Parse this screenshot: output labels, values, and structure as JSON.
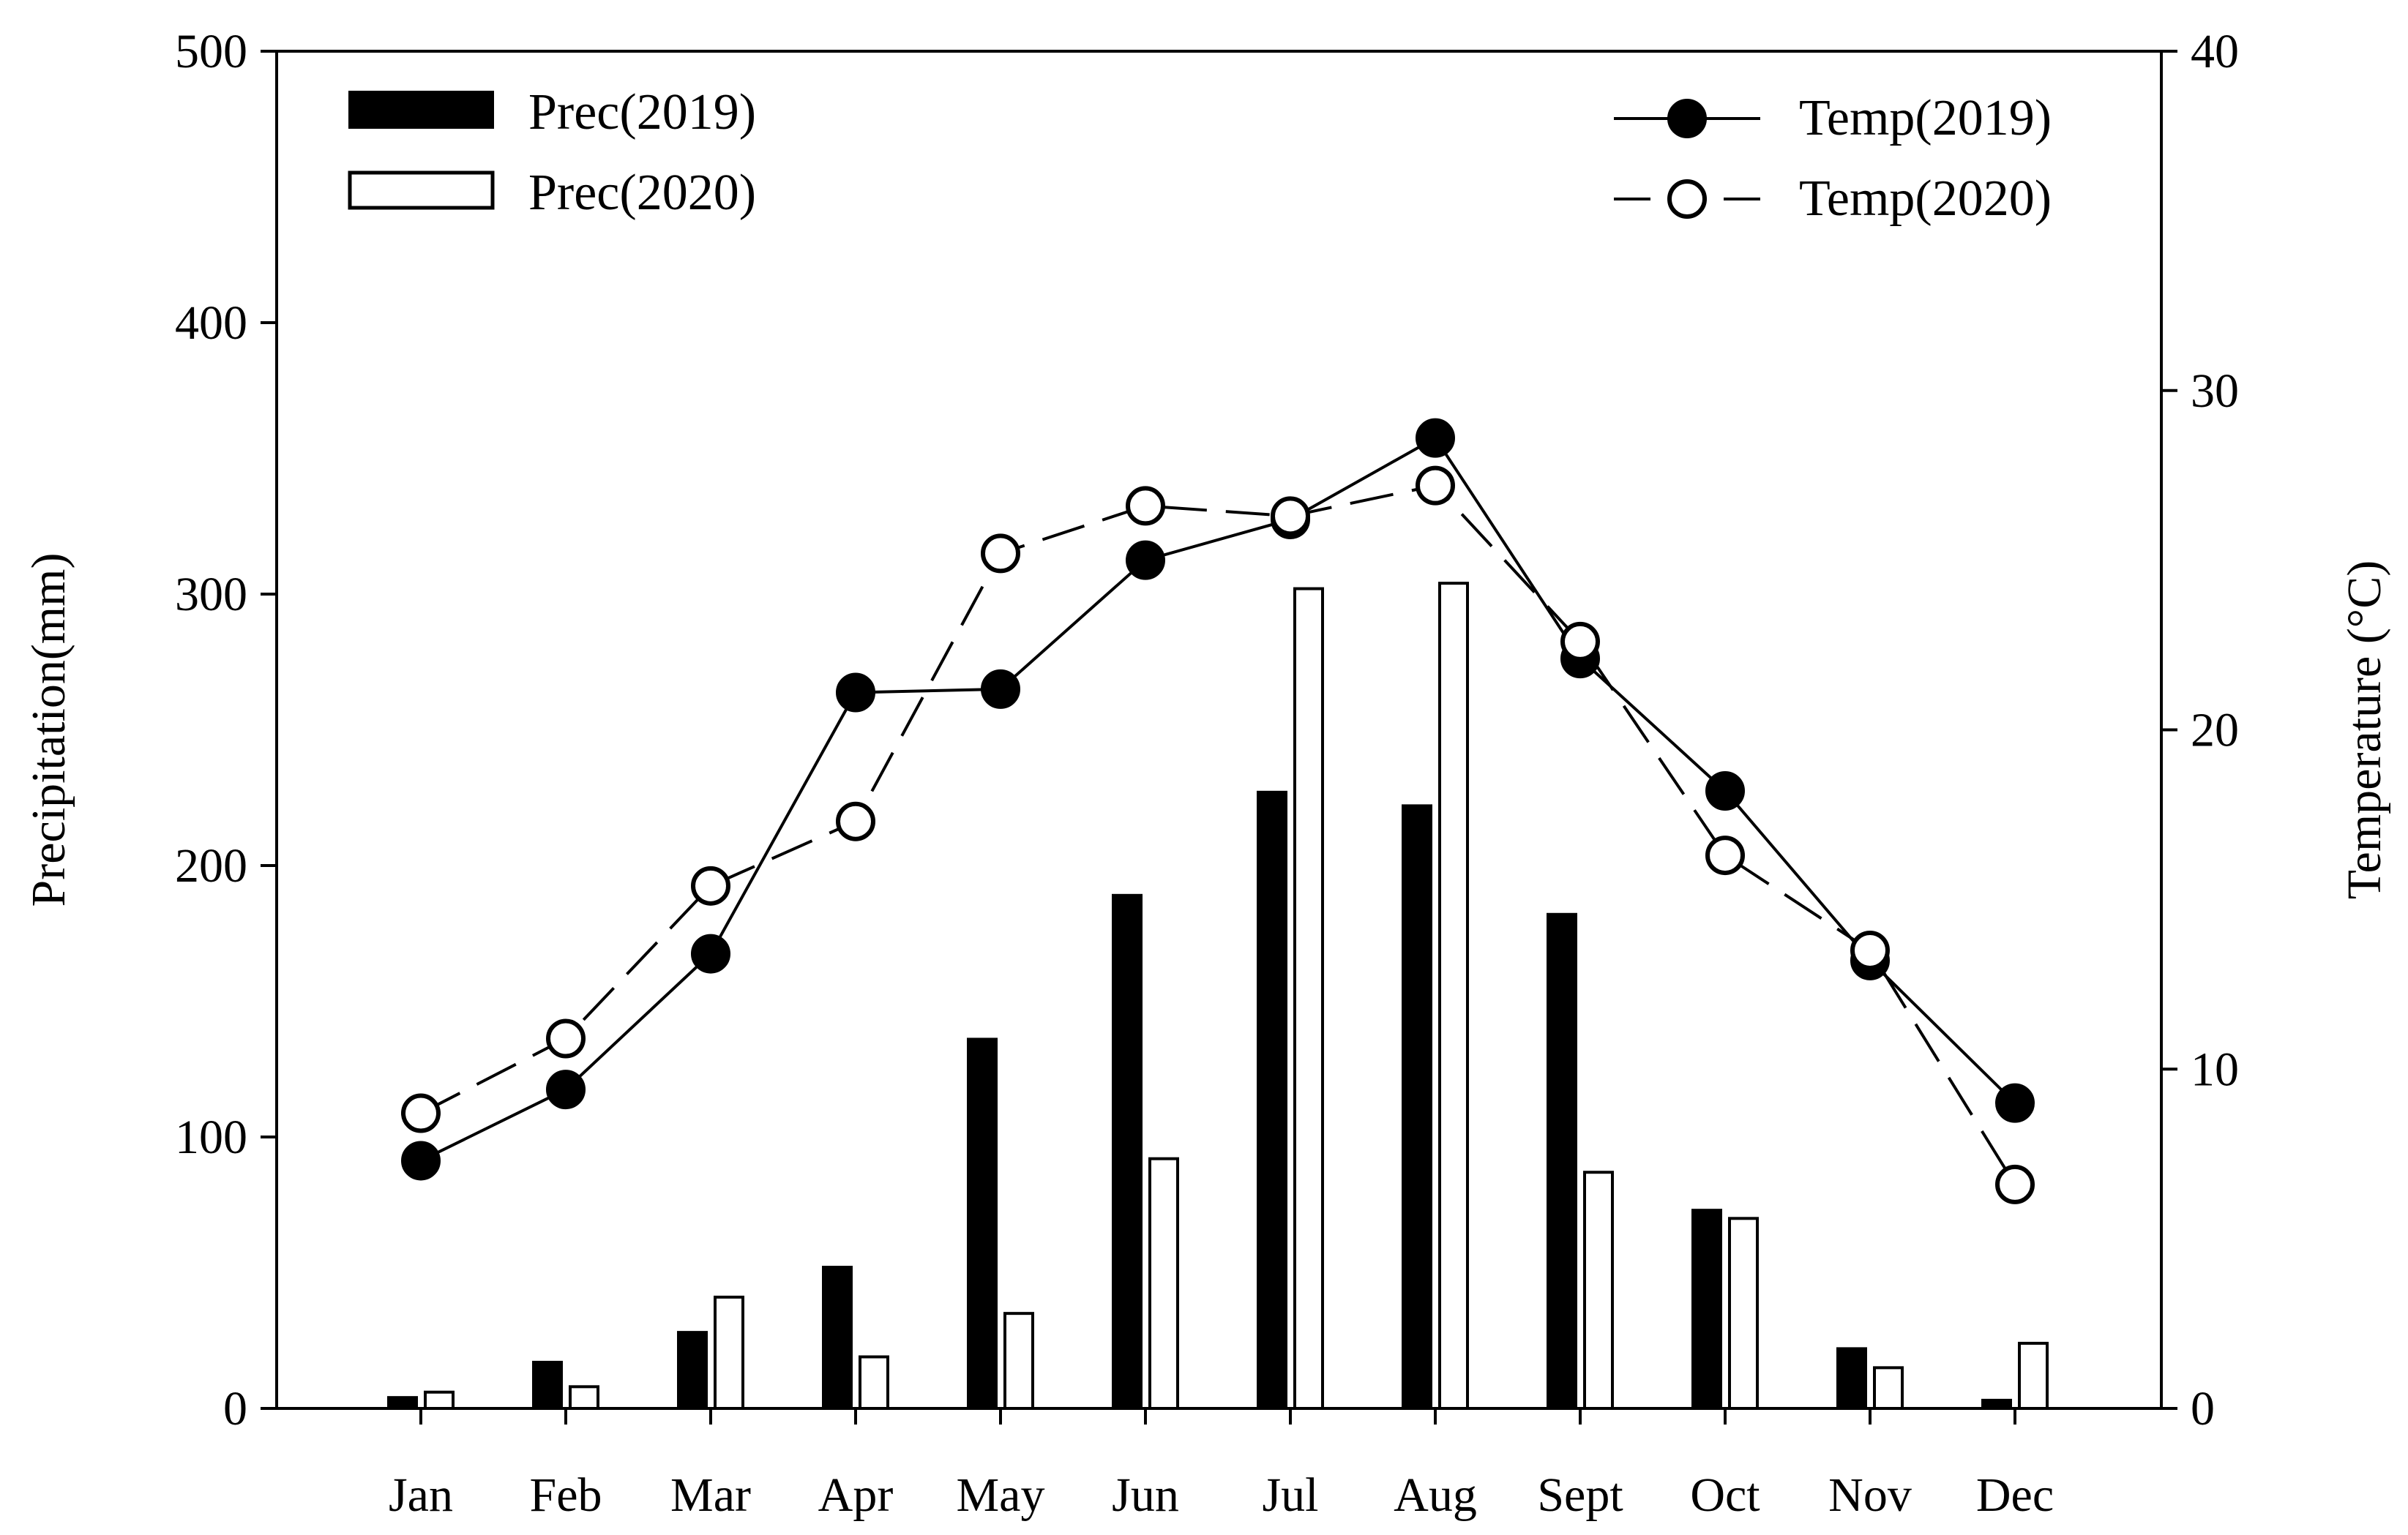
{
  "chart_data": {
    "type": "bar+line",
    "categories": [
      "Jan",
      "Feb",
      "Mar",
      "Apr",
      "May",
      "Jun",
      "Jul",
      "Aug",
      "Sept",
      "Oct",
      "Nov",
      "Dec"
    ],
    "bar_series": [
      {
        "name": "Prec(2019)",
        "fill": "#000000",
        "values": [
          4,
          17,
          28,
          52,
          136,
          189,
          227,
          222,
          182,
          73,
          22,
          3
        ]
      },
      {
        "name": "Prec(2020)",
        "fill": "#ffffff",
        "values": [
          6,
          8,
          41,
          19,
          35,
          92,
          302,
          304,
          87,
          70,
          15,
          24
        ]
      }
    ],
    "line_series": [
      {
        "name": "Temp(2019)",
        "marker": "filled-circle",
        "line": "solid",
        "values": [
          7.3,
          9.4,
          13.4,
          21.1,
          21.2,
          25.0,
          26.2,
          28.6,
          22.1,
          18.2,
          13.2,
          9.0
        ]
      },
      {
        "name": "Temp(2020)",
        "marker": "open-circle",
        "line": "dashed",
        "values": [
          8.7,
          10.9,
          15.4,
          17.3,
          25.2,
          26.6,
          26.3,
          27.2,
          22.6,
          16.3,
          13.5,
          6.6
        ]
      }
    ],
    "ylabel": "Precipitation(mm)",
    "y2label": "Temperature (°C)",
    "ylim": [
      0,
      500
    ],
    "y2lim": [
      0,
      40
    ],
    "yticks": [
      "0",
      "100",
      "200",
      "300",
      "400",
      "500"
    ],
    "y2ticks": [
      "0",
      "10",
      "20",
      "30",
      "40"
    ],
    "grid": false,
    "legend_bars_position": "top-left",
    "legend_lines_position": "top-right"
  }
}
